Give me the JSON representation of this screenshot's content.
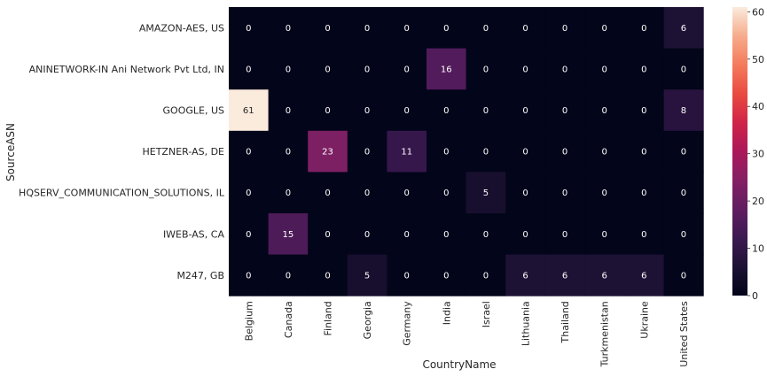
{
  "chart_data": {
    "type": "heatmap",
    "xlabel": "CountryName",
    "ylabel": "SourceASN",
    "columns": [
      "Belgium",
      "Canada",
      "Finland",
      "Georgia",
      "Germany",
      "India",
      "Israel",
      "Lithuania",
      "Thailand",
      "Turkmenistan",
      "Ukraine",
      "United States"
    ],
    "rows": [
      "AMAZON-AES, US",
      "ANINETWORK-IN Ani Network Pvt Ltd, IN",
      "GOOGLE, US",
      "HETZNER-AS, DE",
      "HQSERV_COMMUNICATION_SOLUTIONS, IL",
      "IWEB-AS, CA",
      "M247, GB"
    ],
    "values": [
      [
        0,
        0,
        0,
        0,
        0,
        0,
        0,
        0,
        0,
        0,
        0,
        6
      ],
      [
        0,
        0,
        0,
        0,
        0,
        16,
        0,
        0,
        0,
        0,
        0,
        0
      ],
      [
        61,
        0,
        0,
        0,
        0,
        0,
        0,
        0,
        0,
        0,
        0,
        8
      ],
      [
        0,
        0,
        23,
        0,
        11,
        0,
        0,
        0,
        0,
        0,
        0,
        0
      ],
      [
        0,
        0,
        0,
        0,
        0,
        0,
        5,
        0,
        0,
        0,
        0,
        0
      ],
      [
        0,
        15,
        0,
        0,
        0,
        0,
        0,
        0,
        0,
        0,
        0,
        0
      ],
      [
        0,
        0,
        0,
        5,
        0,
        0,
        0,
        6,
        6,
        6,
        6,
        0
      ]
    ],
    "vmin": 0,
    "vmax": 61,
    "colormap": "rocket",
    "colorbar_ticks": [
      0,
      10,
      20,
      30,
      40,
      50,
      60
    ],
    "annotations": true
  }
}
